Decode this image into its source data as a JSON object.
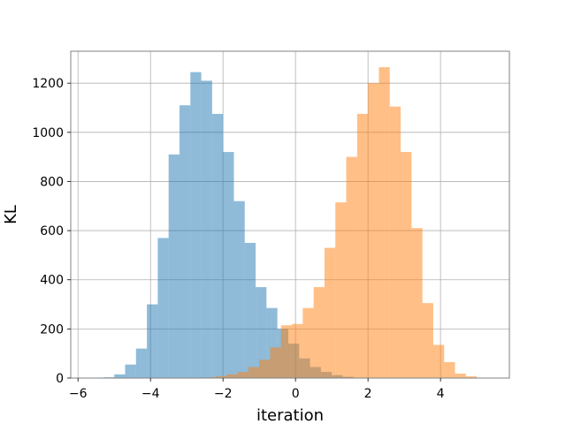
{
  "chart_data": {
    "type": "bar",
    "title": "",
    "xlabel": "iteration",
    "ylabel": "KL",
    "xlim": [
      -6.2,
      5.9
    ],
    "ylim": [
      0,
      1330
    ],
    "grid": true,
    "xticks": [
      -6,
      -4,
      -2,
      0,
      2,
      4
    ],
    "xtick_labels": [
      "−6",
      "−4",
      "−2",
      "0",
      "2",
      "4"
    ],
    "yticks": [
      0,
      200,
      400,
      600,
      800,
      1000,
      1200
    ],
    "yticks_labels": [
      "0",
      "200",
      "400",
      "600",
      "800",
      "1000",
      "1200"
    ],
    "series": [
      {
        "color": "#1f77b4",
        "alpha": 0.5,
        "bins": [
          {
            "x0": -5.3,
            "x1": -5.0,
            "y": 3
          },
          {
            "x0": -5.0,
            "x1": -4.7,
            "y": 15
          },
          {
            "x0": -4.7,
            "x1": -4.4,
            "y": 55
          },
          {
            "x0": -4.4,
            "x1": -4.1,
            "y": 120
          },
          {
            "x0": -4.1,
            "x1": -3.8,
            "y": 300
          },
          {
            "x0": -3.8,
            "x1": -3.5,
            "y": 570
          },
          {
            "x0": -3.5,
            "x1": -3.2,
            "y": 910
          },
          {
            "x0": -3.2,
            "x1": -2.9,
            "y": 1110
          },
          {
            "x0": -2.9,
            "x1": -2.6,
            "y": 1245
          },
          {
            "x0": -2.6,
            "x1": -2.3,
            "y": 1210
          },
          {
            "x0": -2.3,
            "x1": -2.0,
            "y": 1075
          },
          {
            "x0": -2.0,
            "x1": -1.7,
            "y": 920
          },
          {
            "x0": -1.7,
            "x1": -1.4,
            "y": 720
          },
          {
            "x0": -1.4,
            "x1": -1.1,
            "y": 550
          },
          {
            "x0": -1.1,
            "x1": -0.8,
            "y": 370
          },
          {
            "x0": -0.8,
            "x1": -0.5,
            "y": 285
          },
          {
            "x0": -0.5,
            "x1": -0.2,
            "y": 200
          },
          {
            "x0": -0.2,
            "x1": 0.1,
            "y": 140
          },
          {
            "x0": 0.1,
            "x1": 0.4,
            "y": 80
          },
          {
            "x0": 0.4,
            "x1": 0.7,
            "y": 45
          },
          {
            "x0": 0.7,
            "x1": 1.0,
            "y": 25
          },
          {
            "x0": 1.0,
            "x1": 1.3,
            "y": 12
          },
          {
            "x0": 1.3,
            "x1": 1.6,
            "y": 5
          }
        ]
      },
      {
        "color": "#ff7f0e",
        "alpha": 0.5,
        "bins": [
          {
            "x0": -2.5,
            "x1": -2.2,
            "y": 3
          },
          {
            "x0": -2.2,
            "x1": -1.9,
            "y": 8
          },
          {
            "x0": -1.9,
            "x1": -1.6,
            "y": 15
          },
          {
            "x0": -1.6,
            "x1": -1.3,
            "y": 25
          },
          {
            "x0": -1.3,
            "x1": -1.0,
            "y": 45
          },
          {
            "x0": -1.0,
            "x1": -0.7,
            "y": 75
          },
          {
            "x0": -0.7,
            "x1": -0.4,
            "y": 125
          },
          {
            "x0": -0.4,
            "x1": -0.1,
            "y": 215
          },
          {
            "x0": -0.1,
            "x1": 0.2,
            "y": 220
          },
          {
            "x0": 0.2,
            "x1": 0.5,
            "y": 285
          },
          {
            "x0": 0.5,
            "x1": 0.8,
            "y": 370
          },
          {
            "x0": 0.8,
            "x1": 1.1,
            "y": 530
          },
          {
            "x0": 1.1,
            "x1": 1.4,
            "y": 715
          },
          {
            "x0": 1.4,
            "x1": 1.7,
            "y": 900
          },
          {
            "x0": 1.7,
            "x1": 2.0,
            "y": 1075
          },
          {
            "x0": 2.0,
            "x1": 2.3,
            "y": 1200
          },
          {
            "x0": 2.3,
            "x1": 2.6,
            "y": 1265
          },
          {
            "x0": 2.6,
            "x1": 2.9,
            "y": 1105
          },
          {
            "x0": 2.9,
            "x1": 3.2,
            "y": 920
          },
          {
            "x0": 3.2,
            "x1": 3.5,
            "y": 610
          },
          {
            "x0": 3.5,
            "x1": 3.8,
            "y": 305
          },
          {
            "x0": 3.8,
            "x1": 4.1,
            "y": 135
          },
          {
            "x0": 4.1,
            "x1": 4.4,
            "y": 65
          },
          {
            "x0": 4.4,
            "x1": 4.7,
            "y": 18
          },
          {
            "x0": 4.7,
            "x1": 5.0,
            "y": 7
          }
        ]
      }
    ]
  }
}
